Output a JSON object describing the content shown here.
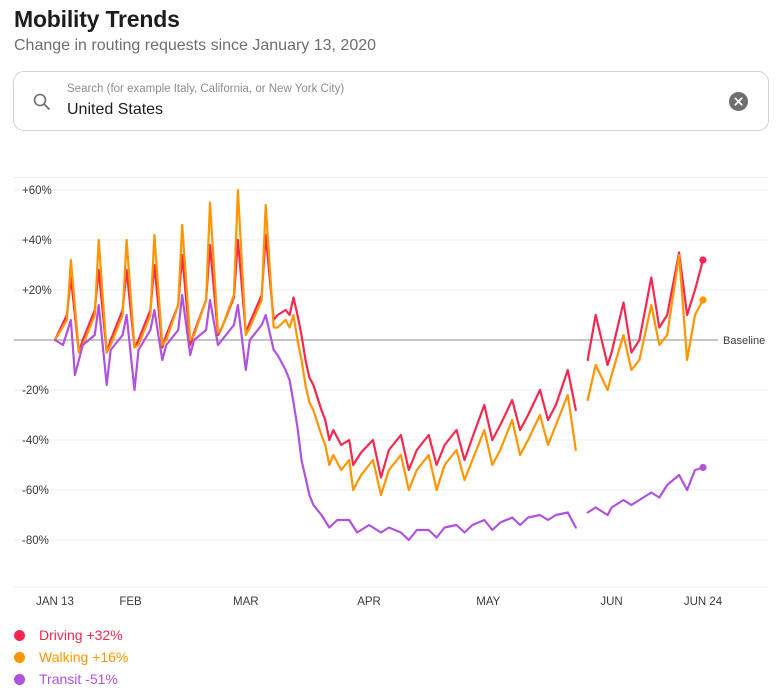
{
  "header": {
    "title": "Mobility Trends",
    "subtitle": "Change in routing requests since January 13, 2020"
  },
  "search": {
    "placeholder": "Search (for example Italy, California, or New York City)",
    "value": "United States",
    "icon": "search-icon",
    "clear_icon": "clear-icon"
  },
  "chart_data": {
    "type": "line",
    "x_start": "2020-01-13",
    "x_end": "2020-06-24",
    "x_ticks": [
      {
        "label": "JAN 13",
        "date": "2020-01-13"
      },
      {
        "label": "FEB",
        "date": "2020-02-01"
      },
      {
        "label": "MAR",
        "date": "2020-03-01"
      },
      {
        "label": "APR",
        "date": "2020-04-01"
      },
      {
        "label": "MAY",
        "date": "2020-05-01"
      },
      {
        "label": "JUN",
        "date": "2020-06-01"
      },
      {
        "label": "JUN 24",
        "date": "2020-06-24"
      }
    ],
    "y_ticks": [
      {
        "label": "+60%",
        "value": 60
      },
      {
        "label": "+40%",
        "value": 40
      },
      {
        "label": "+20%",
        "value": 20
      },
      {
        "label": "-20%",
        "value": -20
      },
      {
        "label": "-40%",
        "value": -40
      },
      {
        "label": "-60%",
        "value": -60
      },
      {
        "label": "-80%",
        "value": -80
      }
    ],
    "ylim": [
      -90,
      70
    ],
    "baseline": {
      "value": 0,
      "label": "Baseline"
    },
    "grid": true,
    "legend_position": "bottom-left",
    "series": [
      {
        "name": "Driving",
        "legend_label": "Driving +32%",
        "color": "#f5284f",
        "points": [
          [
            "2020-01-13",
            0
          ],
          [
            "2020-01-16",
            10
          ],
          [
            "2020-01-17",
            25
          ],
          [
            "2020-01-19",
            -5
          ],
          [
            "2020-01-20",
            0
          ],
          [
            "2020-01-23",
            12
          ],
          [
            "2020-01-24",
            28
          ],
          [
            "2020-01-26",
            -5
          ],
          [
            "2020-01-27",
            0
          ],
          [
            "2020-01-30",
            12
          ],
          [
            "2020-01-31",
            28
          ],
          [
            "2020-02-02",
            -3
          ],
          [
            "2020-02-03",
            0
          ],
          [
            "2020-02-06",
            12
          ],
          [
            "2020-02-07",
            30
          ],
          [
            "2020-02-09",
            -3
          ],
          [
            "2020-02-10",
            2
          ],
          [
            "2020-02-13",
            14
          ],
          [
            "2020-02-14",
            34
          ],
          [
            "2020-02-16",
            -2
          ],
          [
            "2020-02-17",
            3
          ],
          [
            "2020-02-20",
            16
          ],
          [
            "2020-02-21",
            38
          ],
          [
            "2020-02-23",
            2
          ],
          [
            "2020-02-24",
            5
          ],
          [
            "2020-02-27",
            17
          ],
          [
            "2020-02-28",
            40
          ],
          [
            "2020-03-01",
            3
          ],
          [
            "2020-03-02",
            7
          ],
          [
            "2020-03-05",
            18
          ],
          [
            "2020-03-06",
            42
          ],
          [
            "2020-03-08",
            8
          ],
          [
            "2020-03-09",
            10
          ],
          [
            "2020-03-11",
            12
          ],
          [
            "2020-03-12",
            10
          ],
          [
            "2020-03-13",
            17
          ],
          [
            "2020-03-14",
            10
          ],
          [
            "2020-03-15",
            2
          ],
          [
            "2020-03-16",
            -8
          ],
          [
            "2020-03-17",
            -15
          ],
          [
            "2020-03-18",
            -18
          ],
          [
            "2020-03-20",
            -28
          ],
          [
            "2020-03-21",
            -32
          ],
          [
            "2020-03-22",
            -40
          ],
          [
            "2020-03-23",
            -36
          ],
          [
            "2020-03-25",
            -42
          ],
          [
            "2020-03-27",
            -40
          ],
          [
            "2020-03-28",
            -50
          ],
          [
            "2020-03-30",
            -45
          ],
          [
            "2020-04-02",
            -40
          ],
          [
            "2020-04-04",
            -55
          ],
          [
            "2020-04-06",
            -44
          ],
          [
            "2020-04-09",
            -38
          ],
          [
            "2020-04-11",
            -52
          ],
          [
            "2020-04-13",
            -44
          ],
          [
            "2020-04-16",
            -38
          ],
          [
            "2020-04-18",
            -50
          ],
          [
            "2020-04-20",
            -42
          ],
          [
            "2020-04-23",
            -36
          ],
          [
            "2020-04-25",
            -48
          ],
          [
            "2020-04-27",
            -39
          ],
          [
            "2020-04-30",
            -26
          ],
          [
            "2020-05-02",
            -40
          ],
          [
            "2020-05-04",
            -34
          ],
          [
            "2020-05-07",
            -24
          ],
          [
            "2020-05-09",
            -36
          ],
          [
            "2020-05-11",
            -30
          ],
          [
            "2020-05-14",
            -20
          ],
          [
            "2020-05-16",
            -32
          ],
          [
            "2020-05-18",
            -26
          ],
          [
            "2020-05-21",
            -12
          ],
          [
            "2020-05-23",
            -28
          ]
        ],
        "points_after_gap": [
          [
            "2020-05-26",
            -8
          ],
          [
            "2020-05-28",
            10
          ],
          [
            "2020-05-31",
            -10
          ],
          [
            "2020-06-01",
            -5
          ],
          [
            "2020-06-04",
            15
          ],
          [
            "2020-06-06",
            -5
          ],
          [
            "2020-06-08",
            0
          ],
          [
            "2020-06-11",
            25
          ],
          [
            "2020-06-13",
            5
          ],
          [
            "2020-06-15",
            10
          ],
          [
            "2020-06-18",
            35
          ],
          [
            "2020-06-20",
            10
          ],
          [
            "2020-06-22",
            20
          ],
          [
            "2020-06-24",
            32
          ]
        ]
      },
      {
        "name": "Walking",
        "legend_label": "Walking +16%",
        "color": "#ff9500",
        "points": [
          [
            "2020-01-13",
            0
          ],
          [
            "2020-01-16",
            8
          ],
          [
            "2020-01-17",
            32
          ],
          [
            "2020-01-19",
            -5
          ],
          [
            "2020-01-20",
            -2
          ],
          [
            "2020-01-23",
            10
          ],
          [
            "2020-01-24",
            40
          ],
          [
            "2020-01-26",
            -5
          ],
          [
            "2020-01-27",
            -2
          ],
          [
            "2020-01-30",
            10
          ],
          [
            "2020-01-31",
            40
          ],
          [
            "2020-02-02",
            -3
          ],
          [
            "2020-02-03",
            -2
          ],
          [
            "2020-02-06",
            10
          ],
          [
            "2020-02-07",
            42
          ],
          [
            "2020-02-09",
            -2
          ],
          [
            "2020-02-10",
            0
          ],
          [
            "2020-02-13",
            14
          ],
          [
            "2020-02-14",
            46
          ],
          [
            "2020-02-16",
            0
          ],
          [
            "2020-02-17",
            2
          ],
          [
            "2020-02-20",
            16
          ],
          [
            "2020-02-21",
            55
          ],
          [
            "2020-02-23",
            3
          ],
          [
            "2020-02-24",
            5
          ],
          [
            "2020-02-27",
            18
          ],
          [
            "2020-02-28",
            60
          ],
          [
            "2020-03-01",
            2
          ],
          [
            "2020-03-02",
            5
          ],
          [
            "2020-03-05",
            16
          ],
          [
            "2020-03-06",
            54
          ],
          [
            "2020-03-08",
            5
          ],
          [
            "2020-03-09",
            5
          ],
          [
            "2020-03-11",
            8
          ],
          [
            "2020-03-12",
            5
          ],
          [
            "2020-03-13",
            10
          ],
          [
            "2020-03-14",
            0
          ],
          [
            "2020-03-15",
            -8
          ],
          [
            "2020-03-16",
            -18
          ],
          [
            "2020-03-17",
            -25
          ],
          [
            "2020-03-18",
            -28
          ],
          [
            "2020-03-20",
            -38
          ],
          [
            "2020-03-21",
            -42
          ],
          [
            "2020-03-22",
            -50
          ],
          [
            "2020-03-23",
            -46
          ],
          [
            "2020-03-25",
            -52
          ],
          [
            "2020-03-27",
            -48
          ],
          [
            "2020-03-28",
            -60
          ],
          [
            "2020-03-30",
            -54
          ],
          [
            "2020-04-02",
            -48
          ],
          [
            "2020-04-04",
            -62
          ],
          [
            "2020-04-06",
            -52
          ],
          [
            "2020-04-09",
            -46
          ],
          [
            "2020-04-11",
            -60
          ],
          [
            "2020-04-13",
            -52
          ],
          [
            "2020-04-16",
            -46
          ],
          [
            "2020-04-18",
            -60
          ],
          [
            "2020-04-20",
            -50
          ],
          [
            "2020-04-23",
            -44
          ],
          [
            "2020-04-25",
            -56
          ],
          [
            "2020-04-27",
            -48
          ],
          [
            "2020-04-30",
            -36
          ],
          [
            "2020-05-02",
            -50
          ],
          [
            "2020-05-04",
            -44
          ],
          [
            "2020-05-07",
            -32
          ],
          [
            "2020-05-09",
            -46
          ],
          [
            "2020-05-11",
            -40
          ],
          [
            "2020-05-14",
            -30
          ],
          [
            "2020-05-16",
            -42
          ],
          [
            "2020-05-18",
            -34
          ],
          [
            "2020-05-21",
            -22
          ],
          [
            "2020-05-23",
            -44
          ]
        ],
        "points_after_gap": [
          [
            "2020-05-26",
            -24
          ],
          [
            "2020-05-28",
            -10
          ],
          [
            "2020-05-31",
            -20
          ],
          [
            "2020-06-01",
            -14
          ],
          [
            "2020-06-04",
            2
          ],
          [
            "2020-06-06",
            -12
          ],
          [
            "2020-06-08",
            -8
          ],
          [
            "2020-06-11",
            14
          ],
          [
            "2020-06-13",
            -2
          ],
          [
            "2020-06-15",
            2
          ],
          [
            "2020-06-18",
            34
          ],
          [
            "2020-06-20",
            -8
          ],
          [
            "2020-06-22",
            10
          ],
          [
            "2020-06-24",
            16
          ]
        ]
      },
      {
        "name": "Transit",
        "legend_label": "Transit -51%",
        "color": "#af52de",
        "points": [
          [
            "2020-01-13",
            0
          ],
          [
            "2020-01-15",
            -2
          ],
          [
            "2020-01-17",
            8
          ],
          [
            "2020-01-18",
            -14
          ],
          [
            "2020-01-20",
            -2
          ],
          [
            "2020-01-23",
            2
          ],
          [
            "2020-01-24",
            14
          ],
          [
            "2020-01-26",
            -18
          ],
          [
            "2020-01-27",
            -4
          ],
          [
            "2020-01-30",
            2
          ],
          [
            "2020-01-31",
            10
          ],
          [
            "2020-02-02",
            -20
          ],
          [
            "2020-02-03",
            -4
          ],
          [
            "2020-02-06",
            4
          ],
          [
            "2020-02-07",
            12
          ],
          [
            "2020-02-09",
            -8
          ],
          [
            "2020-02-10",
            -2
          ],
          [
            "2020-02-13",
            4
          ],
          [
            "2020-02-14",
            18
          ],
          [
            "2020-02-16",
            -6
          ],
          [
            "2020-02-17",
            0
          ],
          [
            "2020-02-20",
            4
          ],
          [
            "2020-02-21",
            16
          ],
          [
            "2020-02-23",
            -2
          ],
          [
            "2020-02-24",
            0
          ],
          [
            "2020-02-27",
            6
          ],
          [
            "2020-02-28",
            14
          ],
          [
            "2020-03-01",
            -12
          ],
          [
            "2020-03-02",
            0
          ],
          [
            "2020-03-05",
            6
          ],
          [
            "2020-03-06",
            10
          ],
          [
            "2020-03-08",
            -4
          ],
          [
            "2020-03-09",
            -6
          ],
          [
            "2020-03-11",
            -12
          ],
          [
            "2020-03-12",
            -16
          ],
          [
            "2020-03-13",
            -25
          ],
          [
            "2020-03-14",
            -35
          ],
          [
            "2020-03-15",
            -48
          ],
          [
            "2020-03-16",
            -55
          ],
          [
            "2020-03-17",
            -62
          ],
          [
            "2020-03-18",
            -66
          ],
          [
            "2020-03-20",
            -70
          ],
          [
            "2020-03-22",
            -75
          ],
          [
            "2020-03-24",
            -72
          ],
          [
            "2020-03-27",
            -72
          ],
          [
            "2020-03-29",
            -77
          ],
          [
            "2020-04-01",
            -74
          ],
          [
            "2020-04-04",
            -77
          ],
          [
            "2020-04-06",
            -75
          ],
          [
            "2020-04-09",
            -77
          ],
          [
            "2020-04-11",
            -80
          ],
          [
            "2020-04-13",
            -76
          ],
          [
            "2020-04-16",
            -76
          ],
          [
            "2020-04-18",
            -79
          ],
          [
            "2020-04-20",
            -75
          ],
          [
            "2020-04-23",
            -74
          ],
          [
            "2020-04-25",
            -77
          ],
          [
            "2020-04-27",
            -74
          ],
          [
            "2020-04-30",
            -72
          ],
          [
            "2020-05-02",
            -76
          ],
          [
            "2020-05-04",
            -73
          ],
          [
            "2020-05-07",
            -71
          ],
          [
            "2020-05-09",
            -74
          ],
          [
            "2020-05-11",
            -71
          ],
          [
            "2020-05-14",
            -70
          ],
          [
            "2020-05-16",
            -72
          ],
          [
            "2020-05-18",
            -70
          ],
          [
            "2020-05-21",
            -69
          ],
          [
            "2020-05-23",
            -75
          ]
        ],
        "points_after_gap": [
          [
            "2020-05-26",
            -69
          ],
          [
            "2020-05-28",
            -67
          ],
          [
            "2020-05-31",
            -70
          ],
          [
            "2020-06-01",
            -67
          ],
          [
            "2020-06-04",
            -64
          ],
          [
            "2020-06-06",
            -66
          ],
          [
            "2020-06-08",
            -64
          ],
          [
            "2020-06-11",
            -61
          ],
          [
            "2020-06-13",
            -63
          ],
          [
            "2020-06-15",
            -58
          ],
          [
            "2020-06-18",
            -54
          ],
          [
            "2020-06-20",
            -60
          ],
          [
            "2020-06-22",
            -52
          ],
          [
            "2020-06-24",
            -51
          ]
        ]
      }
    ]
  }
}
